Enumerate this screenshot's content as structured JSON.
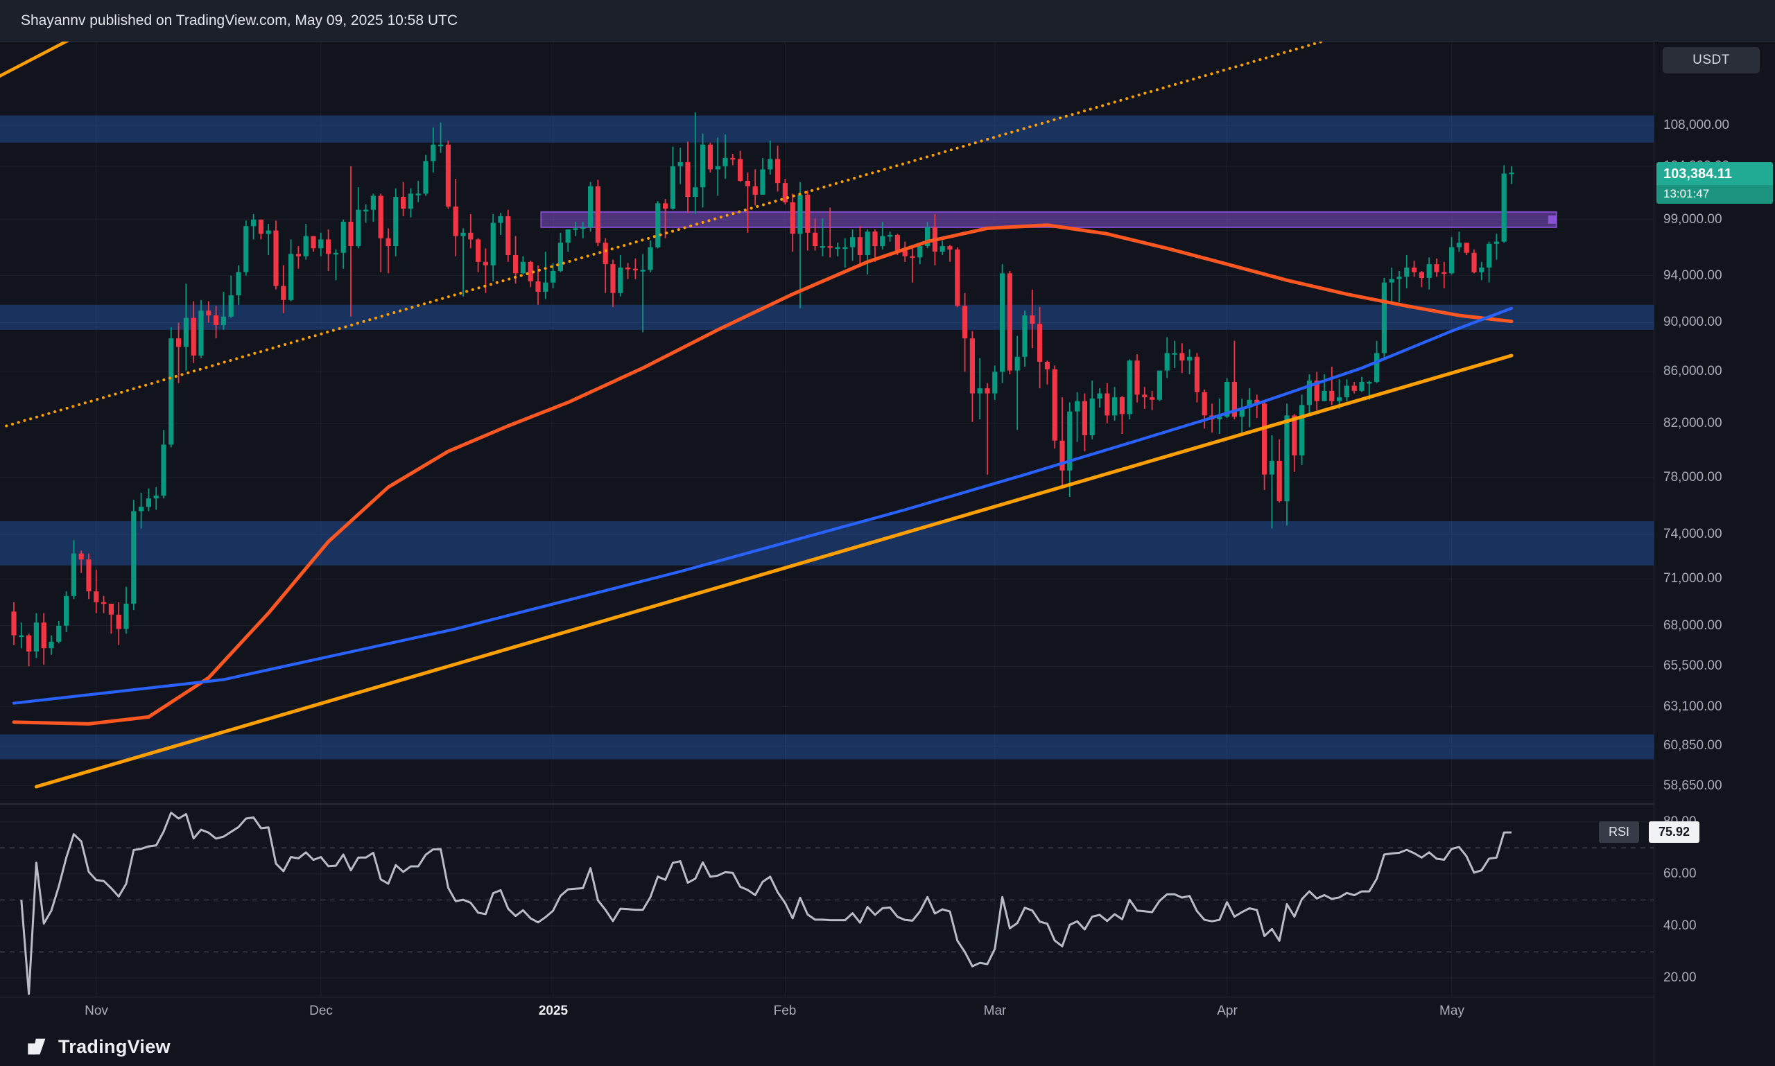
{
  "publish_bar": {
    "text": "Shayannv published on TradingView.com, May 09, 2025 10:58 UTC"
  },
  "symbol_chip": {
    "label": "USDT"
  },
  "price_scale": {
    "labels": [
      "108,000.00",
      "104,000.00",
      "99,000.00",
      "94,000.00",
      "90,000.00",
      "86,000.00",
      "82,000.00",
      "78,000.00",
      "74,000.00",
      "71,000.00",
      "68,000.00",
      "65,500.00",
      "63,100.00",
      "60,850.00",
      "58,650.00"
    ],
    "last_price_label": "103,384.11",
    "countdown": "13:01:47"
  },
  "time_scale": {
    "labels": [
      {
        "label": "Nov",
        "day": 11
      },
      {
        "label": "Dec",
        "day": 41
      },
      {
        "label": "2025",
        "day": 72,
        "highlight": true
      },
      {
        "label": "Feb",
        "day": 103
      },
      {
        "label": "Mar",
        "day": 131
      },
      {
        "label": "Apr",
        "day": 162
      },
      {
        "label": "May",
        "day": 192
      }
    ]
  },
  "rsi_pane": {
    "name": "RSI",
    "value": "75.92",
    "scale_labels": [
      "80.00",
      "60.00",
      "40.00",
      "20.00"
    ],
    "guide_levels": [
      70,
      50,
      30
    ]
  },
  "footer": {
    "brand": "TradingView"
  },
  "colors": {
    "up": "#089981",
    "down": "#f23645",
    "zone": "#3179f5",
    "purple": "#8a52d6",
    "trend": "#ffa000",
    "ma_fast": "#ff5722",
    "ma_slow": "#2962ff",
    "rsi": "#b7bcc6",
    "badge": "#22ab94",
    "badge_dark": "#1d9480",
    "grid": "rgba(170,180,200,0.08)"
  },
  "chart_data": {
    "type": "candlestick",
    "y_scale": "log",
    "price_unit": "thousand_usd",
    "x_unit": "daily_bars",
    "quote_currency": "USDT",
    "last_price": 103384.11,
    "panes": [
      "price",
      "rsi"
    ],
    "candles": [
      [
        68.9,
        69.5,
        66.8,
        67.4
      ],
      [
        67.4,
        68.2,
        66.6,
        67.4
      ],
      [
        67.4,
        67.5,
        65.5,
        66.4
      ],
      [
        66.4,
        68.8,
        66.0,
        68.2
      ],
      [
        68.2,
        68.8,
        65.6,
        66.6
      ],
      [
        66.6,
        67.4,
        66.2,
        67.0
      ],
      [
        67.0,
        68.3,
        66.9,
        68.0
      ],
      [
        68.0,
        70.2,
        67.6,
        69.9
      ],
      [
        69.9,
        73.6,
        69.7,
        72.7
      ],
      [
        72.7,
        72.9,
        71.4,
        72.3
      ],
      [
        72.3,
        72.7,
        69.7,
        70.2
      ],
      [
        70.2,
        71.6,
        68.8,
        69.5
      ],
      [
        69.5,
        69.9,
        68.8,
        69.4
      ],
      [
        69.4,
        69.4,
        67.5,
        68.7
      ],
      [
        68.7,
        69.5,
        66.8,
        67.8
      ],
      [
        67.8,
        70.5,
        67.5,
        69.4
      ],
      [
        69.4,
        76.4,
        69.0,
        75.6
      ],
      [
        75.6,
        76.9,
        74.4,
        75.9
      ],
      [
        75.9,
        77.2,
        75.6,
        76.5
      ],
      [
        76.5,
        77.3,
        75.7,
        76.7
      ],
      [
        76.7,
        81.5,
        76.5,
        80.4
      ],
      [
        80.4,
        89.6,
        80.2,
        88.7
      ],
      [
        88.7,
        90.0,
        85.1,
        88.0
      ],
      [
        88.0,
        93.3,
        86.1,
        90.4
      ],
      [
        90.4,
        91.8,
        86.7,
        87.3
      ],
      [
        87.3,
        91.9,
        87.1,
        91.0
      ],
      [
        91.0,
        91.8,
        90.0,
        90.6
      ],
      [
        90.6,
        91.4,
        88.7,
        89.8
      ],
      [
        89.8,
        92.6,
        89.4,
        90.5
      ],
      [
        90.5,
        94.0,
        90.4,
        92.3
      ],
      [
        92.3,
        94.9,
        91.5,
        94.3
      ],
      [
        94.3,
        98.9,
        94.0,
        98.4
      ],
      [
        98.4,
        99.5,
        97.2,
        99.0
      ],
      [
        99.0,
        99.0,
        97.2,
        97.7
      ],
      [
        97.7,
        98.6,
        95.8,
        98.0
      ],
      [
        98.0,
        98.9,
        92.8,
        93.1
      ],
      [
        93.1,
        94.9,
        90.8,
        91.9
      ],
      [
        91.9,
        97.2,
        91.8,
        95.9
      ],
      [
        95.9,
        96.6,
        94.6,
        95.7
      ],
      [
        95.7,
        98.6,
        95.4,
        97.5
      ],
      [
        97.5,
        97.5,
        96.1,
        96.4
      ],
      [
        96.4,
        97.8,
        95.7,
        97.2
      ],
      [
        97.2,
        98.1,
        94.4,
        95.9
      ],
      [
        95.9,
        96.3,
        93.6,
        96.0
      ],
      [
        96.0,
        99.0,
        94.6,
        98.8
      ],
      [
        98.8,
        104.0,
        90.5,
        96.6
      ],
      [
        96.6,
        102.0,
        96.4,
        99.9
      ],
      [
        99.9,
        100.4,
        98.7,
        99.9
      ],
      [
        99.9,
        101.4,
        98.8,
        101.2
      ],
      [
        101.2,
        101.4,
        94.3,
        97.3
      ],
      [
        97.3,
        98.2,
        94.2,
        96.6
      ],
      [
        96.6,
        101.9,
        95.7,
        101.1
      ],
      [
        101.1,
        102.5,
        99.3,
        100.0
      ],
      [
        100.0,
        101.9,
        99.2,
        101.4
      ],
      [
        101.4,
        102.6,
        100.6,
        101.4
      ],
      [
        101.4,
        105.1,
        101.2,
        104.5
      ],
      [
        104.5,
        107.8,
        103.4,
        106.1
      ],
      [
        106.1,
        108.3,
        105.3,
        106.1
      ],
      [
        106.1,
        106.5,
        100.0,
        100.2
      ],
      [
        100.2,
        102.8,
        95.7,
        97.5
      ],
      [
        97.5,
        98.2,
        92.2,
        97.8
      ],
      [
        97.8,
        99.5,
        96.4,
        97.2
      ],
      [
        97.2,
        97.3,
        94.3,
        95.2
      ],
      [
        95.2,
        96.4,
        92.5,
        94.9
      ],
      [
        94.9,
        99.5,
        93.5,
        98.7
      ],
      [
        98.7,
        99.6,
        97.6,
        99.3
      ],
      [
        99.3,
        99.9,
        95.2,
        95.8
      ],
      [
        95.8,
        97.5,
        93.3,
        94.2
      ],
      [
        94.2,
        95.7,
        94.1,
        95.2
      ],
      [
        95.2,
        95.3,
        93.0,
        93.5
      ],
      [
        93.5,
        94.9,
        91.5,
        92.6
      ],
      [
        92.6,
        96.1,
        92.0,
        93.4
      ],
      [
        93.4,
        95.1,
        92.9,
        94.4
      ],
      [
        94.4,
        97.8,
        94.3,
        96.9
      ],
      [
        96.9,
        98.1,
        96.1,
        98.1
      ],
      [
        98.1,
        98.8,
        97.5,
        98.2
      ],
      [
        98.2,
        98.8,
        97.3,
        98.3
      ],
      [
        98.3,
        102.5,
        97.9,
        102.1
      ],
      [
        102.1,
        102.7,
        96.6,
        96.9
      ],
      [
        96.9,
        97.3,
        92.5,
        95.0
      ],
      [
        95.0,
        95.4,
        91.3,
        92.5
      ],
      [
        92.5,
        95.8,
        92.2,
        94.7
      ],
      [
        94.7,
        95.1,
        93.7,
        94.6
      ],
      [
        94.6,
        95.5,
        93.7,
        94.5
      ],
      [
        94.5,
        95.9,
        89.2,
        94.5
      ],
      [
        94.5,
        97.1,
        94.3,
        96.5
      ],
      [
        96.5,
        100.7,
        96.4,
        100.5
      ],
      [
        100.5,
        100.9,
        97.3,
        100.0
      ],
      [
        100.0,
        105.9,
        99.9,
        104.0
      ],
      [
        104.0,
        105.8,
        102.3,
        104.4
      ],
      [
        104.4,
        106.4,
        99.6,
        101.1
      ],
      [
        101.1,
        109.3,
        99.5,
        102.0
      ],
      [
        102.0,
        107.2,
        100.1,
        106.1
      ],
      [
        106.1,
        106.3,
        103.4,
        103.7
      ],
      [
        103.7,
        106.8,
        101.2,
        104.0
      ],
      [
        104.0,
        107.1,
        102.8,
        104.8
      ],
      [
        104.8,
        105.2,
        104.1,
        104.7
      ],
      [
        104.7,
        105.5,
        102.5,
        102.6
      ],
      [
        102.6,
        103.4,
        97.8,
        102.1
      ],
      [
        102.1,
        103.7,
        100.3,
        101.3
      ],
      [
        101.3,
        104.8,
        101.3,
        103.7
      ],
      [
        103.7,
        106.5,
        103.2,
        104.7
      ],
      [
        104.7,
        106.0,
        101.6,
        102.4
      ],
      [
        102.4,
        102.8,
        100.4,
        100.6
      ],
      [
        100.6,
        101.4,
        96.1,
        97.7
      ],
      [
        97.7,
        102.5,
        91.2,
        101.3
      ],
      [
        101.3,
        101.7,
        96.2,
        97.8
      ],
      [
        97.8,
        99.1,
        96.2,
        96.6
      ],
      [
        96.6,
        99.1,
        95.7,
        96.6
      ],
      [
        96.6,
        100.1,
        95.6,
        96.5
      ],
      [
        96.5,
        96.9,
        95.7,
        96.5
      ],
      [
        96.5,
        97.3,
        94.7,
        96.5
      ],
      [
        96.5,
        98.1,
        95.3,
        97.4
      ],
      [
        97.4,
        98.4,
        94.9,
        95.8
      ],
      [
        95.8,
        98.1,
        94.1,
        97.9
      ],
      [
        97.9,
        98.1,
        95.2,
        96.6
      ],
      [
        96.6,
        98.8,
        96.3,
        97.5
      ],
      [
        97.5,
        97.9,
        97.0,
        97.6
      ],
      [
        97.6,
        97.7,
        95.8,
        96.2
      ],
      [
        96.2,
        97.0,
        95.2,
        95.7
      ],
      [
        95.7,
        96.7,
        93.4,
        95.6
      ],
      [
        95.6,
        96.9,
        95.0,
        96.6
      ],
      [
        96.6,
        98.8,
        96.4,
        98.3
      ],
      [
        98.3,
        99.5,
        94.9,
        96.1
      ],
      [
        96.1,
        97.1,
        95.8,
        96.6
      ],
      [
        96.6,
        96.7,
        95.2,
        96.3
      ],
      [
        96.3,
        96.5,
        91.3,
        91.4
      ],
      [
        91.4,
        92.5,
        86.0,
        88.7
      ],
      [
        88.7,
        89.3,
        82.1,
        84.3
      ],
      [
        84.3,
        87.1,
        82.3,
        84.7
      ],
      [
        84.7,
        85.1,
        78.2,
        84.3
      ],
      [
        84.3,
        86.5,
        83.8,
        86.0
      ],
      [
        86.0,
        95.0,
        85.1,
        94.2
      ],
      [
        94.2,
        94.4,
        85.8,
        86.1
      ],
      [
        86.1,
        88.9,
        81.5,
        87.2
      ],
      [
        87.2,
        91.0,
        86.4,
        90.6
      ],
      [
        90.6,
        92.8,
        87.9,
        89.9
      ],
      [
        89.9,
        91.3,
        84.7,
        86.8
      ],
      [
        86.8,
        86.9,
        85.0,
        86.2
      ],
      [
        86.2,
        86.5,
        80.1,
        80.7
      ],
      [
        80.7,
        84.0,
        77.4,
        78.5
      ],
      [
        78.5,
        83.6,
        76.6,
        82.9
      ],
      [
        82.9,
        84.4,
        80.6,
        83.7
      ],
      [
        83.7,
        84.3,
        79.9,
        81.1
      ],
      [
        81.1,
        85.3,
        80.8,
        83.9
      ],
      [
        83.9,
        84.7,
        83.2,
        84.3
      ],
      [
        84.3,
        85.1,
        82.0,
        82.6
      ],
      [
        82.6,
        84.8,
        82.2,
        84.0
      ],
      [
        84.0,
        84.1,
        81.2,
        82.7
      ],
      [
        82.7,
        87.0,
        82.3,
        86.9
      ],
      [
        86.9,
        87.4,
        83.6,
        84.2
      ],
      [
        84.2,
        84.8,
        83.1,
        84.0
      ],
      [
        84.0,
        84.5,
        83.0,
        83.8
      ],
      [
        83.8,
        86.1,
        83.7,
        86.1
      ],
      [
        86.1,
        88.8,
        85.5,
        87.5
      ],
      [
        87.5,
        88.5,
        86.3,
        87.5
      ],
      [
        87.5,
        88.3,
        85.9,
        86.9
      ],
      [
        86.9,
        87.8,
        85.8,
        87.2
      ],
      [
        87.2,
        87.5,
        83.6,
        84.4
      ],
      [
        84.4,
        84.6,
        81.6,
        82.6
      ],
      [
        82.6,
        83.5,
        81.3,
        82.3
      ],
      [
        82.3,
        83.9,
        81.2,
        82.5
      ],
      [
        82.5,
        85.5,
        82.4,
        85.2
      ],
      [
        85.2,
        88.5,
        82.3,
        82.5
      ],
      [
        82.5,
        83.9,
        81.2,
        83.2
      ],
      [
        83.2,
        84.7,
        81.7,
        83.8
      ],
      [
        83.8,
        84.2,
        82.4,
        83.5
      ],
      [
        83.5,
        83.7,
        77.1,
        78.2
      ],
      [
        78.2,
        81.1,
        74.4,
        79.2
      ],
      [
        79.2,
        80.8,
        76.2,
        76.3
      ],
      [
        76.3,
        83.5,
        74.6,
        82.6
      ],
      [
        82.6,
        82.7,
        78.4,
        79.6
      ],
      [
        79.6,
        84.2,
        78.9,
        83.4
      ],
      [
        83.4,
        85.8,
        82.8,
        85.3
      ],
      [
        85.3,
        86.0,
        83.0,
        83.7
      ],
      [
        83.7,
        85.8,
        83.7,
        84.5
      ],
      [
        84.5,
        86.4,
        83.4,
        83.7
      ],
      [
        83.7,
        85.4,
        83.1,
        84.0
      ],
      [
        84.0,
        85.4,
        83.7,
        84.9
      ],
      [
        84.9,
        85.2,
        84.3,
        84.5
      ],
      [
        84.5,
        85.6,
        84.4,
        85.2
      ],
      [
        85.2,
        85.3,
        83.8,
        85.2
      ],
      [
        85.2,
        88.5,
        85.1,
        87.5
      ],
      [
        87.5,
        93.8,
        87.1,
        93.4
      ],
      [
        93.4,
        94.7,
        91.7,
        93.7
      ],
      [
        93.7,
        94.4,
        91.7,
        93.9
      ],
      [
        93.9,
        95.8,
        92.9,
        94.7
      ],
      [
        94.7,
        95.3,
        93.9,
        94.3
      ],
      [
        94.3,
        94.4,
        93.0,
        93.8
      ],
      [
        93.8,
        95.6,
        92.8,
        95.0
      ],
      [
        95.0,
        95.5,
        93.9,
        94.3
      ],
      [
        94.3,
        95.2,
        92.9,
        94.2
      ],
      [
        94.2,
        97.4,
        94.1,
        96.5
      ],
      [
        96.5,
        97.9,
        96.1,
        96.9
      ],
      [
        96.9,
        96.9,
        95.8,
        96.0
      ],
      [
        96.0,
        96.3,
        94.2,
        94.3
      ],
      [
        94.3,
        95.2,
        93.6,
        94.7
      ],
      [
        94.7,
        97.0,
        93.4,
        96.8
      ],
      [
        96.8,
        97.7,
        95.4,
        97.0
      ],
      [
        97.0,
        104.1,
        96.9,
        103.3
      ],
      [
        103.3,
        104.0,
        102.3,
        103.4
      ]
    ],
    "ma_fast": [
      [
        0,
        62.2
      ],
      [
        10,
        62.1
      ],
      [
        18,
        62.5
      ],
      [
        26,
        64.8
      ],
      [
        34,
        68.8
      ],
      [
        42,
        73.5
      ],
      [
        50,
        77.3
      ],
      [
        58,
        79.9
      ],
      [
        66,
        81.8
      ],
      [
        74,
        83.6
      ],
      [
        84,
        86.3
      ],
      [
        94,
        89.4
      ],
      [
        104,
        92.4
      ],
      [
        114,
        95.2
      ],
      [
        122,
        97.0
      ],
      [
        130,
        98.2
      ],
      [
        138,
        98.5
      ],
      [
        146,
        97.7
      ],
      [
        154,
        96.4
      ],
      [
        162,
        95.0
      ],
      [
        170,
        93.6
      ],
      [
        178,
        92.4
      ],
      [
        186,
        91.4
      ],
      [
        193,
        90.6
      ],
      [
        200,
        90.1
      ]
    ],
    "ma_slow": [
      [
        0,
        63.3
      ],
      [
        28,
        64.7
      ],
      [
        59,
        67.8
      ],
      [
        89,
        71.5
      ],
      [
        119,
        75.7
      ],
      [
        135,
        78.2
      ],
      [
        150,
        80.7
      ],
      [
        165,
        83.3
      ],
      [
        180,
        86.3
      ],
      [
        192,
        89.3
      ],
      [
        200,
        91.2
      ]
    ],
    "trendline_dotted": {
      "points": [
        [
          -1,
          81.8
        ],
        [
          178,
          117.5
        ]
      ]
    },
    "trendline_support": {
      "points": [
        [
          3,
          58.6
        ],
        [
          200,
          87.3
        ]
      ]
    },
    "trendline_upper": {
      "points": [
        [
          -2,
          113.0
        ],
        [
          10,
          118.0
        ]
      ]
    },
    "zones": [
      [
        106.3,
        109.0
      ],
      [
        89.4,
        91.5
      ],
      [
        71.9,
        74.9
      ],
      [
        60.1,
        61.5
      ]
    ],
    "purple_zone": {
      "price": [
        98.3,
        99.7
      ],
      "days": [
        70.4,
        206
      ]
    },
    "rsi": {
      "period": 14,
      "source": "close",
      "last_value": 75.92
    }
  }
}
